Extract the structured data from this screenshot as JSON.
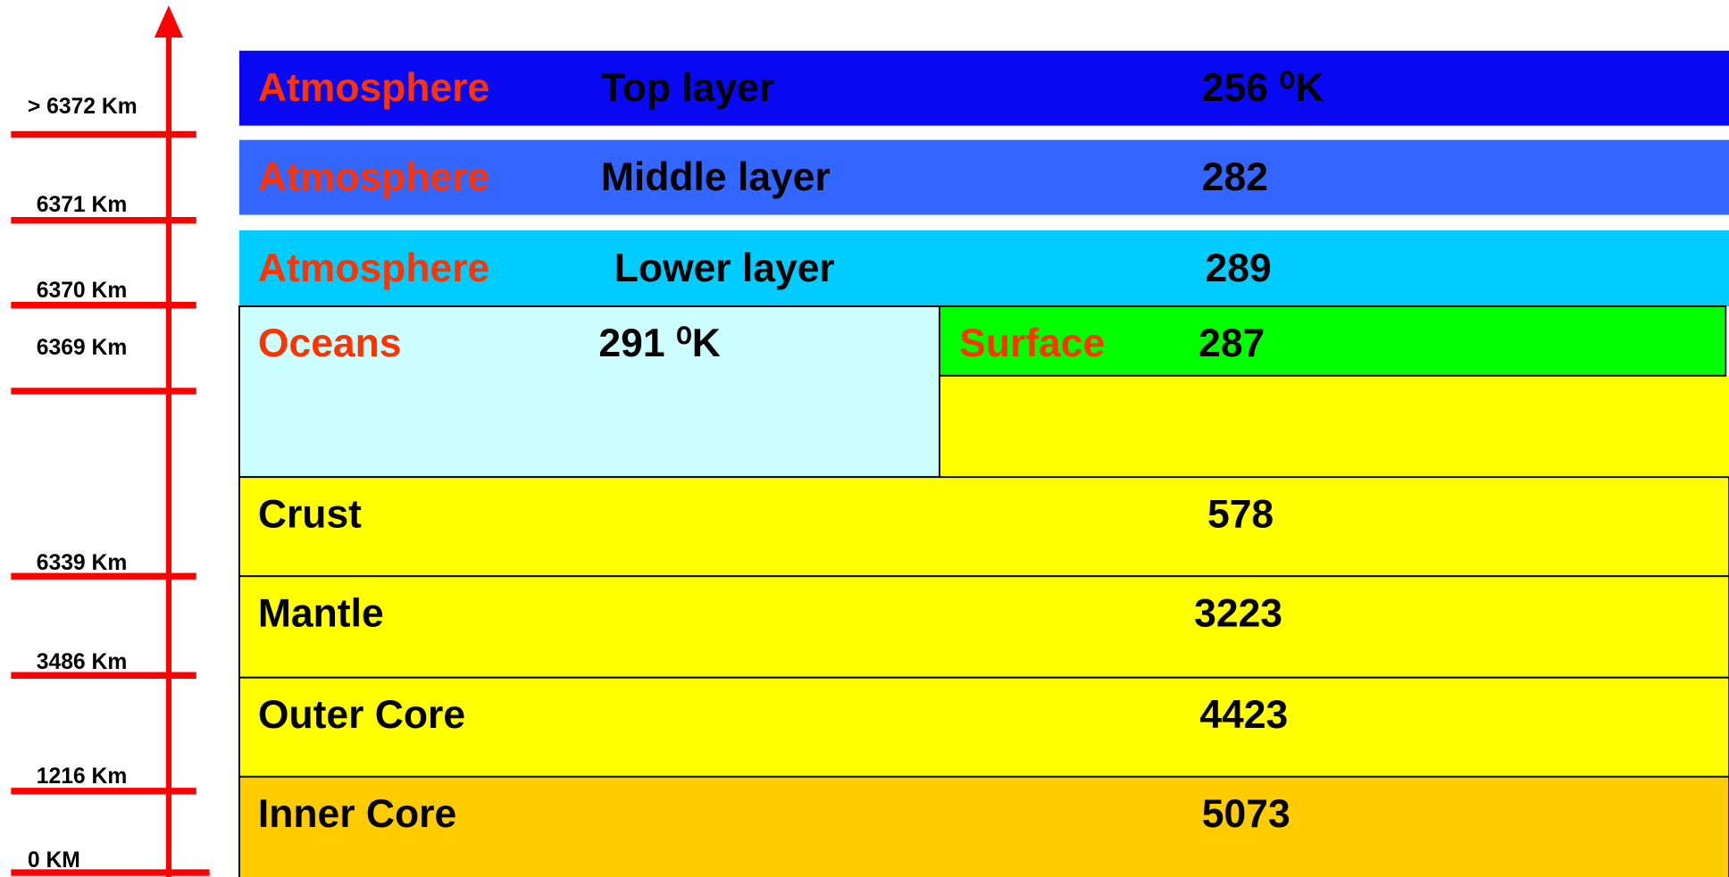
{
  "axis_labels": [
    "> 6372 Km",
    "6371 Km",
    "6370 Km",
    "6369 Km",
    "6339 Km",
    "3486 Km",
    "1216 Km",
    "0 KM"
  ],
  "atmosphere": [
    {
      "name": "Atmosphere",
      "layer": "Top layer",
      "temperature": "256 ⁰K"
    },
    {
      "name": "Atmosphere",
      "layer": "Middle layer",
      "temperature": "282"
    },
    {
      "name": "Atmosphere",
      "layer": "Lower layer",
      "temperature": "289"
    }
  ],
  "oceans": {
    "name": "Oceans",
    "temperature": "291 ⁰K"
  },
  "surface": {
    "name": "Surface",
    "temperature": "287"
  },
  "interior": [
    {
      "name": "Crust",
      "temperature": "578"
    },
    {
      "name": "Mantle",
      "temperature": "3223"
    },
    {
      "name": "Outer Core",
      "temperature": "4423"
    },
    {
      "name": "Inner Core",
      "temperature": "5073"
    }
  ]
}
